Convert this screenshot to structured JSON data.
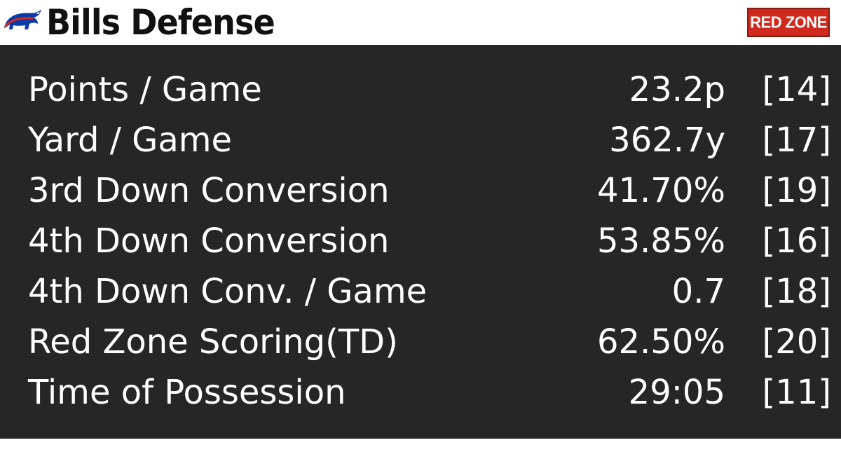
{
  "header": {
    "title": "Bills Defense",
    "badge": "RED ZONE",
    "logo_icon": "bills-buffalo-logo-icon",
    "logo_color": "#0b3aa8",
    "logo_stripe_color": "#d02a1e",
    "badge_color": "#d02a1e"
  },
  "panel": {
    "background": "#262626"
  },
  "stats": [
    {
      "label": "Points / Game",
      "value": "23.2p",
      "rank": "[14]"
    },
    {
      "label": "Yard / Game",
      "value": "362.7y",
      "rank": "[17]"
    },
    {
      "label": "3rd Down Conversion",
      "value": "41.70%",
      "rank": "[19]"
    },
    {
      "label": "4th Down Conversion",
      "value": "53.85%",
      "rank": "[16]"
    },
    {
      "label": "4th Down Conv. / Game",
      "value": "0.7",
      "rank": "[18]"
    },
    {
      "label": "Red Zone Scoring(TD)",
      "value": "62.50%",
      "rank": "[20]"
    },
    {
      "label": "Time of Possession",
      "value": "29:05",
      "rank": "[11]"
    }
  ]
}
